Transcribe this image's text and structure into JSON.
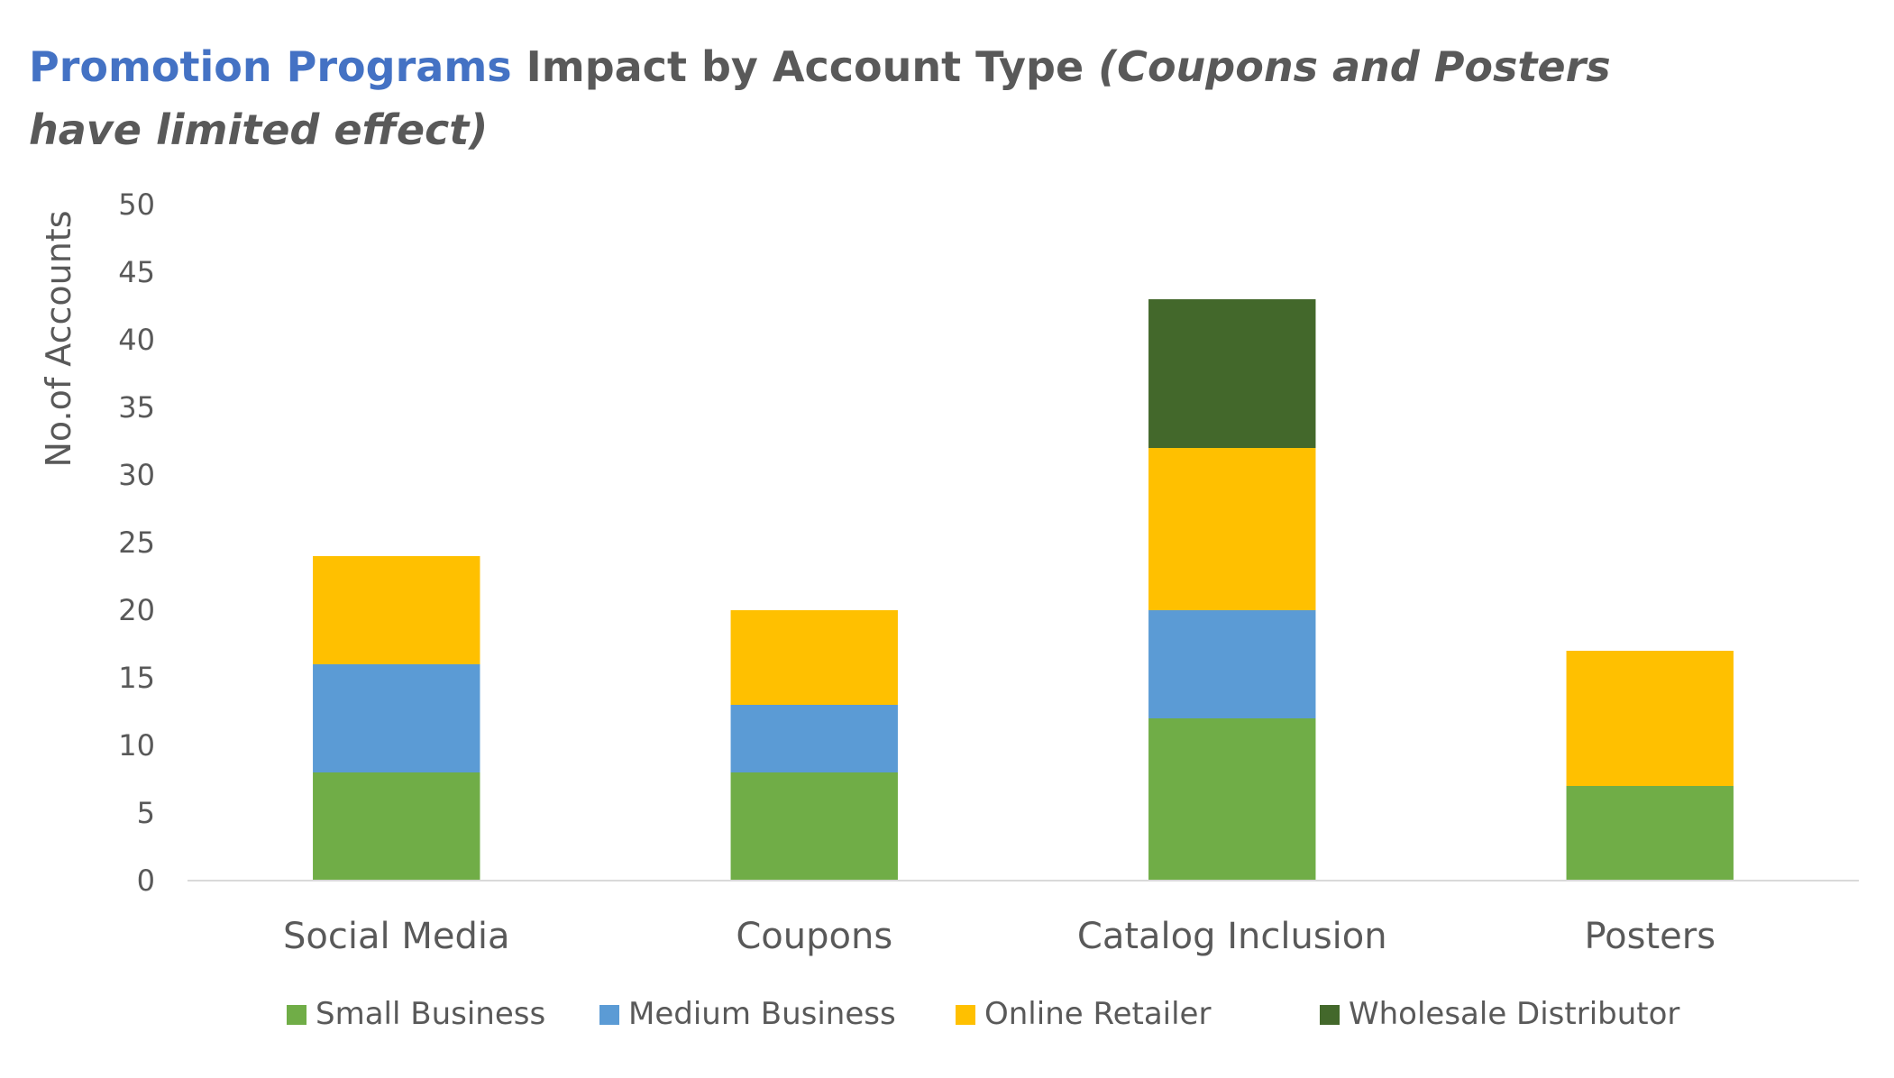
{
  "chart_data": {
    "type": "bar",
    "stacked": true,
    "title": {
      "highlight": "Promotion Programs",
      "main": " Impact by Account Type ",
      "italic_line1": "(Coupons and Posters",
      "italic_line2": "have limited effect)"
    },
    "xlabel": "",
    "ylabel": "No.of Accounts",
    "ylim": [
      0,
      50
    ],
    "ytick_step": 5,
    "grid": false,
    "legend_position": "bottom",
    "categories": [
      "Social Media",
      "Coupons",
      "Catalog Inclusion",
      "Posters"
    ],
    "series": [
      {
        "name": "Small Business",
        "color": "#70AD47",
        "values": [
          8,
          8,
          12,
          7
        ]
      },
      {
        "name": "Medium Business",
        "color": "#5B9BD5",
        "values": [
          8,
          5,
          8,
          0
        ]
      },
      {
        "name": "Online Retailer",
        "color": "#FFC000",
        "values": [
          8,
          7,
          12,
          10
        ]
      },
      {
        "name": "Wholesale Distributor",
        "color": "#43682B",
        "values": [
          0,
          0,
          11,
          0
        ]
      }
    ],
    "colors": {
      "title_highlight": "#4472C4",
      "title_main": "#595959",
      "axis_line": "#D9D9D9",
      "text": "#595959"
    }
  }
}
